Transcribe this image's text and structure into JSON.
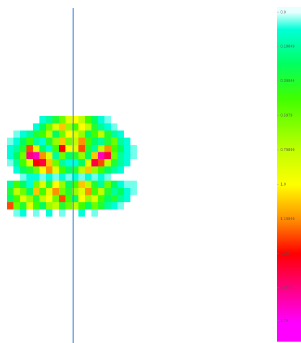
{
  "chart_data": {
    "type": "heatmap",
    "z": [
      [
        null,
        null,
        null,
        null,
        null,
        0.1,
        0.2,
        0.4,
        0.6,
        0.9,
        1.0,
        0.8,
        0.5,
        0.3,
        0.1,
        0.05,
        null,
        null,
        null,
        null
      ],
      [
        null,
        null,
        null,
        null,
        0.1,
        0.3,
        0.6,
        0.9,
        1.1,
        0.7,
        0.5,
        1.0,
        0.8,
        0.4,
        0.2,
        0.1,
        0.05,
        null,
        null,
        null
      ],
      [
        null,
        0.05,
        0.1,
        0.2,
        0.4,
        0.5,
        0.8,
        0.3,
        0.6,
        1.0,
        0.9,
        0.7,
        0.3,
        0.5,
        0.8,
        0.4,
        0.2,
        0.1,
        null,
        null
      ],
      [
        0.05,
        0.1,
        0.3,
        0.5,
        0.2,
        0.1,
        0.4,
        0.7,
        1.1,
        0.6,
        0.8,
        1.2,
        0.5,
        0.3,
        0.2,
        0.4,
        0.6,
        0.2,
        0.1,
        null
      ],
      [
        0.1,
        0.2,
        0.4,
        1.3,
        0.9,
        0.3,
        0.1,
        0.5,
        1.4,
        1.0,
        0.9,
        1.3,
        0.4,
        0.2,
        0.8,
        1.2,
        0.5,
        0.3,
        0.1,
        0.05
      ],
      [
        0.1,
        0.3,
        0.6,
        1.6,
        1.7,
        1.2,
        0.9,
        0.2,
        0.6,
        0.3,
        0.4,
        0.7,
        0.3,
        1.1,
        1.7,
        1.5,
        0.6,
        0.2,
        0.1,
        0.05
      ],
      [
        0.05,
        0.2,
        0.5,
        0.9,
        1.4,
        1.5,
        1.1,
        0.6,
        0.2,
        0.1,
        0.1,
        0.3,
        0.9,
        1.5,
        1.3,
        0.8,
        0.4,
        0.2,
        0.1,
        null
      ],
      [
        null,
        0.1,
        0.3,
        0.4,
        0.6,
        1.0,
        1.2,
        0.9,
        0.5,
        0.3,
        0.4,
        0.8,
        1.1,
        0.7,
        0.5,
        0.3,
        0.2,
        0.1,
        null,
        null
      ],
      [
        null,
        null,
        0.05,
        0.1,
        0.1,
        0.05,
        0.1,
        0.05,
        0.1,
        0.05,
        0.1,
        0.05,
        0.1,
        0.05,
        0.1,
        0.05,
        null,
        null,
        null,
        null
      ],
      [
        0.2,
        0.5,
        0.3,
        0.1,
        0.6,
        0.9,
        0.4,
        1.0,
        0.7,
        0.3,
        0.5,
        1.1,
        0.8,
        0.4,
        0.2,
        0.6,
        0.3,
        0.1,
        0.05,
        0.05
      ],
      [
        0.4,
        0.8,
        0.6,
        0.3,
        1.1,
        0.5,
        0.9,
        1.2,
        0.6,
        0.4,
        0.7,
        0.9,
        1.2,
        0.5,
        0.8,
        0.4,
        0.2,
        0.3,
        0.1,
        0.05
      ],
      [
        0.3,
        0.5,
        0.9,
        0.7,
        0.4,
        0.8,
        1.0,
        0.6,
        1.3,
        0.5,
        0.3,
        1.0,
        0.7,
        0.9,
        0.5,
        0.3,
        0.4,
        0.2,
        0.1,
        null
      ],
      [
        1.3,
        0.6,
        0.4,
        0.9,
        0.5,
        0.3,
        0.7,
        0.8,
        0.4,
        0.6,
        0.8,
        0.5,
        0.3,
        0.6,
        0.4,
        0.2,
        0.1,
        0.05,
        null,
        null
      ],
      [
        null,
        0.05,
        0.1,
        null,
        0.05,
        null,
        0.1,
        null,
        0.05,
        null,
        null,
        0.1,
        null,
        0.05,
        null,
        null,
        null,
        null,
        null,
        null
      ]
    ],
    "colorscale": [
      [
        0,
        "#e8ffff"
      ],
      [
        0.1,
        "#00ffd8"
      ],
      [
        0.3,
        "#00ff60"
      ],
      [
        0.5,
        "#40ff00"
      ],
      [
        0.8,
        "#c0ff00"
      ],
      [
        1.0,
        "#ffff00"
      ],
      [
        1.2,
        "#ff9000"
      ],
      [
        1.4,
        "#ff0000"
      ],
      [
        1.6,
        "#ff0080"
      ],
      [
        1.8,
        "#ff00ff"
      ]
    ],
    "zlim": [
      0,
      1.8
    ],
    "zticks": [
      {
        "value": 0,
        "label": "0.0"
      },
      0.19849,
      0.39944,
      0.5979,
      0.79899,
      {
        "value": 1,
        "label": "1.0"
      },
      1.19849,
      1.399,
      1.5979,
      1.79
    ]
  }
}
